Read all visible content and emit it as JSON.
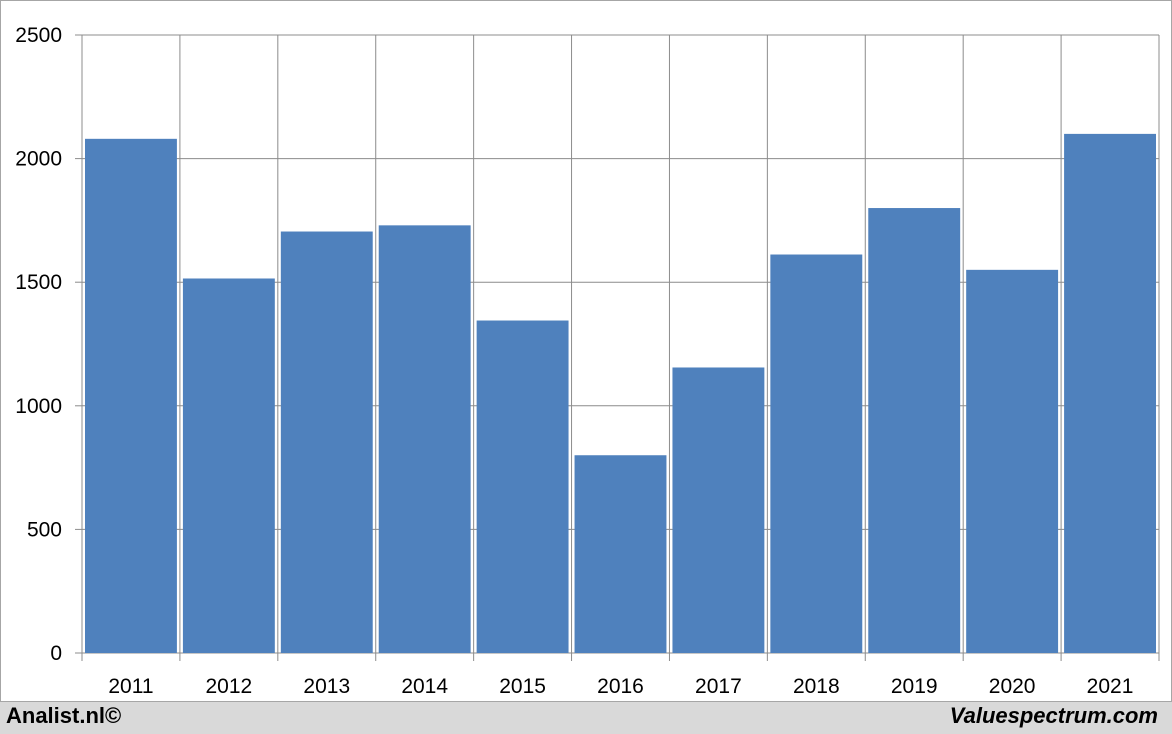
{
  "chart_data": {
    "type": "bar",
    "categories": [
      "2011",
      "2012",
      "2013",
      "2014",
      "2015",
      "2016",
      "2017",
      "2018",
      "2019",
      "2020",
      "2021"
    ],
    "values": [
      2080,
      1515,
      1705,
      1730,
      1345,
      800,
      1155,
      1612,
      1800,
      1550,
      2100
    ],
    "ylim": [
      0,
      2500
    ],
    "yticks": [
      0,
      500,
      1000,
      1500,
      2000,
      2500
    ],
    "grid": true,
    "bar_color": "#4f81bd",
    "grid_color": "#8c8c8c"
  },
  "footer": {
    "left_text": "Analist.nl©",
    "right_text": "Valuespectrum.com"
  }
}
